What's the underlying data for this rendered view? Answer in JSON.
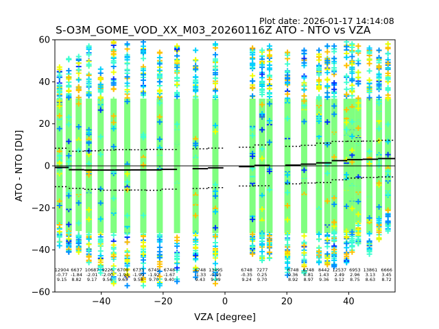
{
  "chart_data": {
    "type": "scatter",
    "plot_date": "Plot date: 2026-01-17 14:14:08",
    "title": "S-O3M_GOME_VOD_XX_M03_20260116Z ATO - NTO vs VZA",
    "xlabel": "VZA [degree]",
    "ylabel": "ATO - NTO [DU]",
    "xlim": [
      -55,
      55
    ],
    "ylim": [
      -60,
      60
    ],
    "xticks": [
      -40,
      -20,
      0,
      20,
      40
    ],
    "xtick_labels": [
      "−40",
      "−20",
      "0",
      "20",
      "40"
    ],
    "yticks": [
      -60,
      -40,
      -20,
      0,
      20,
      40,
      60
    ],
    "ytick_labels": [
      "−60",
      "−40",
      "−20",
      "0",
      "20",
      "40",
      "60"
    ],
    "grid": false,
    "marker": "plus",
    "colors": {
      "main": "#80ff80",
      "cyan": "#40ffd0",
      "aqua": "#00d0ff",
      "blue": "#0090ff",
      "darkblue": "#0030ff",
      "yellow": "#f0ff00",
      "orange": "#ffc000",
      "mean_line": "#000000",
      "std_line": "#000000"
    },
    "columns": [
      {
        "vza": -53.5,
        "ymin": -38,
        "ymax": 47
      },
      {
        "vza": -50.5,
        "ymin": -41,
        "ymax": 51
      },
      {
        "vza": -47.3,
        "ymin": -41,
        "ymax": 52
      },
      {
        "vza": -44.0,
        "ymin": -46,
        "ymax": 57
      },
      {
        "vza": -40.2,
        "ymin": -51,
        "ymax": 46
      },
      {
        "vza": -36.0,
        "ymin": -56,
        "ymax": 59
      },
      {
        "vza": -31.6,
        "ymin": -57,
        "ymax": 58
      },
      {
        "vza": -26.4,
        "ymin": -57,
        "ymax": 59
      },
      {
        "vza": -21.1,
        "ymin": -57,
        "ymax": 54
      },
      {
        "vza": -15.5,
        "ymin": -55,
        "ymax": 57
      },
      {
        "vza": -9.5,
        "ymin": -53,
        "ymax": 55
      },
      {
        "vza": -3.1,
        "ymin": -56,
        "ymax": 58
      },
      {
        "vza": 8.9,
        "ymin": -42,
        "ymax": 56
      },
      {
        "vza": 12.0,
        "ymin": -45,
        "ymax": 55
      },
      {
        "vza": 14.4,
        "ymin": -44,
        "ymax": 57
      },
      {
        "vza": 20.2,
        "ymin": -52,
        "ymax": 54
      },
      {
        "vza": 25.6,
        "ymin": -51,
        "ymax": 55
      },
      {
        "vza": 30.4,
        "ymin": -46,
        "ymax": 55
      },
      {
        "vza": 33.1,
        "ymin": -47,
        "ymax": 57
      },
      {
        "vza": 35.3,
        "ymin": -48,
        "ymax": 57
      },
      {
        "vza": 39.3,
        "ymin": -46,
        "ymax": 59
      },
      {
        "vza": 41.1,
        "ymin": -41,
        "ymax": 58
      },
      {
        "vza": 43.1,
        "ymin": -37,
        "ymax": 57
      },
      {
        "vza": 46.7,
        "ymin": -42,
        "ymax": 56
      },
      {
        "vza": 49.8,
        "ymin": -35,
        "ymax": 55
      },
      {
        "vza": 52.7,
        "ymin": -31,
        "ymax": 58
      }
    ],
    "bins": [
      {
        "x0": -55,
        "x1": -50.5,
        "count": "12904",
        "mean": -0.77,
        "std": 9.15,
        "mean_label": "-0.77",
        "std_label": "9.15"
      },
      {
        "x0": -50.5,
        "x1": -45.5,
        "count": "6637",
        "mean": -1.84,
        "std": 8.82,
        "mean_label": "-1.84",
        "std_label": "8.82"
      },
      {
        "x0": -45.5,
        "x1": -40.5,
        "count": "10687",
        "mean": -2.01,
        "std": 9.17,
        "mean_label": "-2.01",
        "std_label": "9.17"
      },
      {
        "x0": -40.5,
        "x1": -35.5,
        "count": "9226",
        "mean": -2.0,
        "std": 9.56,
        "mean_label": "-2.00",
        "std_label": "9.56"
      },
      {
        "x0": -35.5,
        "x1": -30.5,
        "count": "6708",
        "mean": -1.94,
        "std": 9.65,
        "mean_label": "-1.94",
        "std_label": "9.65"
      },
      {
        "x0": -30.5,
        "x1": -25.5,
        "count": "6733",
        "mean": -1.9,
        "std": 9.58,
        "mean_label": "-1.90",
        "std_label": "9.58"
      },
      {
        "x0": -25.5,
        "x1": -20.5,
        "count": "6745",
        "mean": -1.92,
        "std": 9.7,
        "mean_label": "-1.92",
        "std_label": "9.70"
      },
      {
        "x0": -20.5,
        "x1": -15.5,
        "count": "6748",
        "mean": -1.67,
        "std": 9.4,
        "mean_label": "-1.67",
        "std_label": "9.40"
      },
      {
        "x0": -10.5,
        "x1": -5.5,
        "count": "6748",
        "mean": -1.33,
        "std": 9.43,
        "mean_label": "-1.33",
        "std_label": "9.43"
      },
      {
        "x0": -5.5,
        "x1": -0.5,
        "count": "13495",
        "mean": -0.95,
        "std": 9.39,
        "mean_label": "-0.95",
        "std_label": "9.39"
      },
      {
        "x0": 4.5,
        "x1": 9.5,
        "count": "6748",
        "mean": -0.35,
        "std": 9.24,
        "mean_label": "-0.35",
        "std_label": "9.24"
      },
      {
        "x0": 9.5,
        "x1": 14.5,
        "count": "7277",
        "mean": 0.25,
        "std": 9.7,
        "mean_label": "0.25",
        "std_label": "9.70"
      },
      {
        "x0": 19.5,
        "x1": 24.5,
        "count": "6748",
        "mean": 0.36,
        "std": 8.92,
        "mean_label": "0.36",
        "std_label": "8.92"
      },
      {
        "x0": 24.5,
        "x1": 29.5,
        "count": "6748",
        "mean": 0.81,
        "std": 8.97,
        "mean_label": "0.81",
        "std_label": "8.97"
      },
      {
        "x0": 29.5,
        "x1": 34.5,
        "count": "8442",
        "mean": 1.43,
        "std": 9.36,
        "mean_label": "1.43",
        "std_label": "9.36"
      },
      {
        "x0": 34.5,
        "x1": 39.5,
        "count": "12537",
        "mean": 2.49,
        "std": 9.12,
        "mean_label": "2.49",
        "std_label": "9.12"
      },
      {
        "x0": 39.5,
        "x1": 44.5,
        "count": "6953",
        "mean": 2.96,
        "std": 8.75,
        "mean_label": "2.96",
        "std_label": "8.75"
      },
      {
        "x0": 44.5,
        "x1": 49.5,
        "count": "13861",
        "mean": 3.13,
        "std": 8.63,
        "mean_label": "3.13",
        "std_label": "8.63"
      },
      {
        "x0": 49.5,
        "x1": 55,
        "count": "6666",
        "mean": 3.45,
        "std": 8.72,
        "mean_label": "3.45",
        "std_label": "8.72"
      }
    ]
  }
}
